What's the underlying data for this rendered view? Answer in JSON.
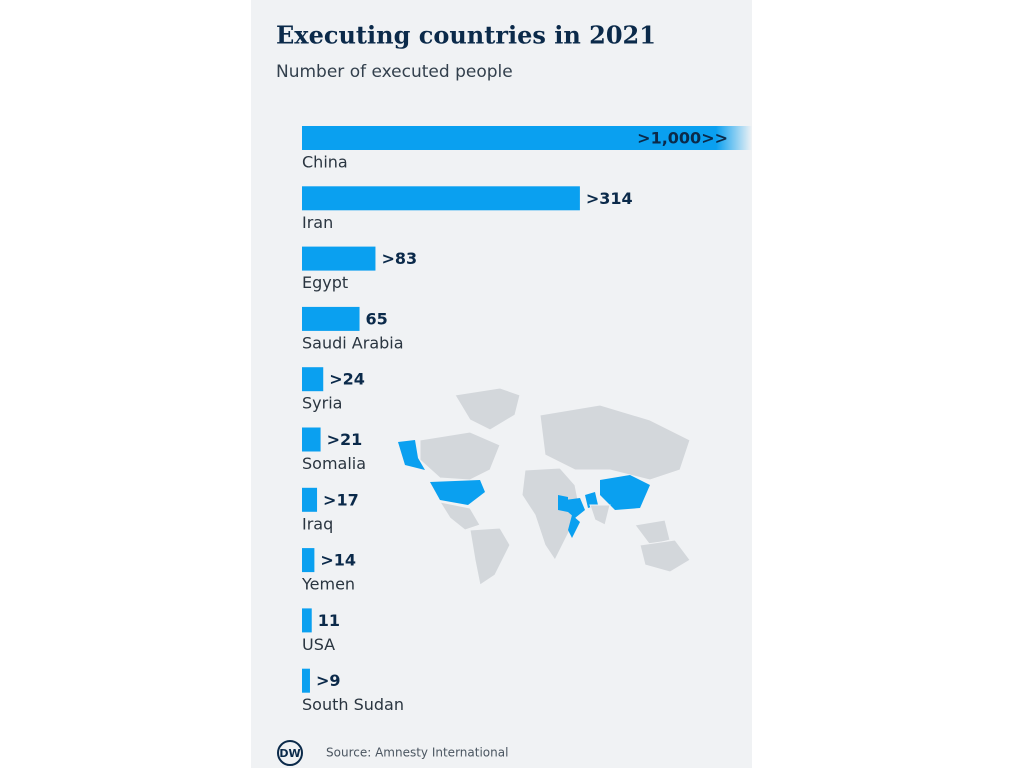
{
  "chart_data": {
    "type": "bar",
    "orientation": "horizontal",
    "title": "Executing countries in 2021",
    "subtitle": "Number of executed people",
    "categories": [
      "China",
      "Iran",
      "Egypt",
      "Saudi Arabia",
      "Syria",
      "Somalia",
      "Iraq",
      "Yemen",
      "USA",
      "South Sudan"
    ],
    "values": [
      1000,
      314,
      83,
      65,
      24,
      21,
      17,
      14,
      11,
      9
    ],
    "value_labels": [
      ">1,000>>",
      ">314",
      ">83",
      "65",
      ">24",
      ">21",
      ">17",
      ">14",
      "11",
      ">9"
    ],
    "color": "#0aa0f0",
    "source": "Source: Amnesty International",
    "logo": "DW"
  }
}
